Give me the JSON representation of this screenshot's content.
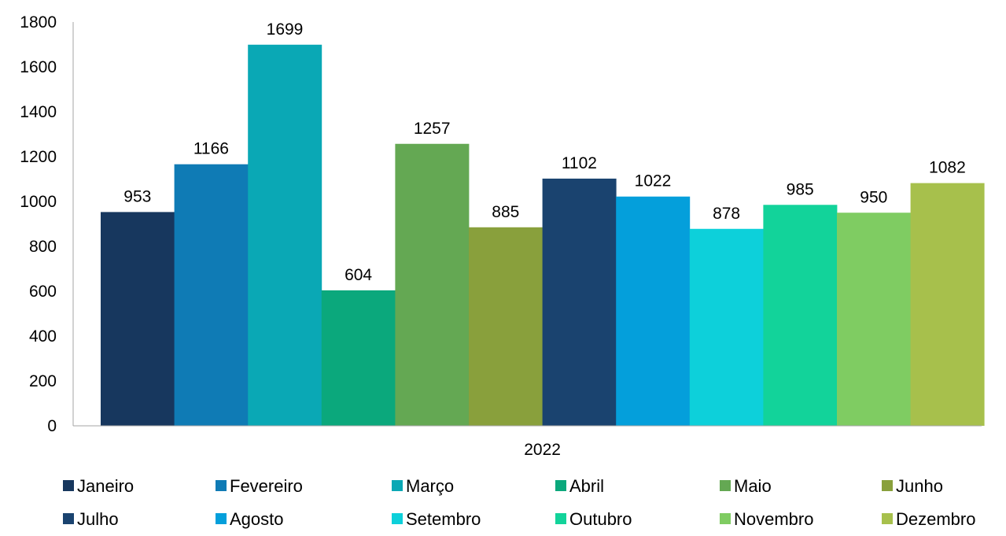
{
  "chart_data": {
    "type": "bar",
    "categories": [
      "2022"
    ],
    "series": [
      {
        "name": "Janeiro",
        "values": [
          953
        ],
        "color": "#17375e"
      },
      {
        "name": "Fevereiro",
        "values": [
          1166
        ],
        "color": "#0f7bb5"
      },
      {
        "name": "Março",
        "values": [
          1699
        ],
        "color": "#0aa8b5"
      },
      {
        "name": "Abril",
        "values": [
          604
        ],
        "color": "#0ba87c"
      },
      {
        "name": "Maio",
        "values": [
          1257
        ],
        "color": "#64a853"
      },
      {
        "name": "Junho",
        "values": [
          885
        ],
        "color": "#89a03c"
      },
      {
        "name": "Julho",
        "values": [
          1102
        ],
        "color": "#1a436f"
      },
      {
        "name": "Agosto",
        "values": [
          1022
        ],
        "color": "#049fdb"
      },
      {
        "name": "Setembro",
        "values": [
          878
        ],
        "color": "#0dd0da"
      },
      {
        "name": "Outubro",
        "values": [
          985
        ],
        "color": "#12d39a"
      },
      {
        "name": "Novembro",
        "values": [
          950
        ],
        "color": "#7fcc62"
      },
      {
        "name": "Dezembro",
        "values": [
          1082
        ],
        "color": "#a7c04c"
      }
    ],
    "ylim": [
      0,
      1800
    ],
    "yticks": [
      0,
      200,
      400,
      600,
      800,
      1000,
      1200,
      1400,
      1600,
      1800
    ],
    "grid": false,
    "legend_position": "bottom",
    "data_labels": true
  }
}
